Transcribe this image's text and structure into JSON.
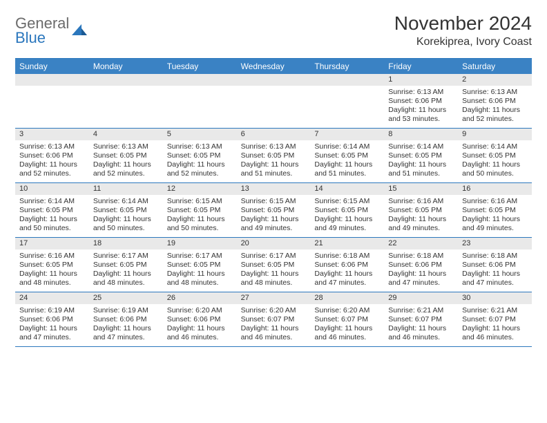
{
  "logo": {
    "line1": "General",
    "line2": "Blue"
  },
  "title": "November 2024",
  "subtitle": "Korekiprea, Ivory Coast",
  "colors": {
    "header_bg": "#3a82c4",
    "header_text": "#ffffff",
    "border": "#2b77bd",
    "daynum_bg": "#e9e9e9",
    "body_text": "#333333",
    "logo_gray": "#6b6b6b",
    "logo_blue": "#2b77bd"
  },
  "day_names": [
    "Sunday",
    "Monday",
    "Tuesday",
    "Wednesday",
    "Thursday",
    "Friday",
    "Saturday"
  ],
  "weeks": [
    [
      {
        "n": "",
        "sunrise": "",
        "sunset": "",
        "daylight": ""
      },
      {
        "n": "",
        "sunrise": "",
        "sunset": "",
        "daylight": ""
      },
      {
        "n": "",
        "sunrise": "",
        "sunset": "",
        "daylight": ""
      },
      {
        "n": "",
        "sunrise": "",
        "sunset": "",
        "daylight": ""
      },
      {
        "n": "",
        "sunrise": "",
        "sunset": "",
        "daylight": ""
      },
      {
        "n": "1",
        "sunrise": "Sunrise: 6:13 AM",
        "sunset": "Sunset: 6:06 PM",
        "daylight": "Daylight: 11 hours and 53 minutes."
      },
      {
        "n": "2",
        "sunrise": "Sunrise: 6:13 AM",
        "sunset": "Sunset: 6:06 PM",
        "daylight": "Daylight: 11 hours and 52 minutes."
      }
    ],
    [
      {
        "n": "3",
        "sunrise": "Sunrise: 6:13 AM",
        "sunset": "Sunset: 6:06 PM",
        "daylight": "Daylight: 11 hours and 52 minutes."
      },
      {
        "n": "4",
        "sunrise": "Sunrise: 6:13 AM",
        "sunset": "Sunset: 6:05 PM",
        "daylight": "Daylight: 11 hours and 52 minutes."
      },
      {
        "n": "5",
        "sunrise": "Sunrise: 6:13 AM",
        "sunset": "Sunset: 6:05 PM",
        "daylight": "Daylight: 11 hours and 52 minutes."
      },
      {
        "n": "6",
        "sunrise": "Sunrise: 6:13 AM",
        "sunset": "Sunset: 6:05 PM",
        "daylight": "Daylight: 11 hours and 51 minutes."
      },
      {
        "n": "7",
        "sunrise": "Sunrise: 6:14 AM",
        "sunset": "Sunset: 6:05 PM",
        "daylight": "Daylight: 11 hours and 51 minutes."
      },
      {
        "n": "8",
        "sunrise": "Sunrise: 6:14 AM",
        "sunset": "Sunset: 6:05 PM",
        "daylight": "Daylight: 11 hours and 51 minutes."
      },
      {
        "n": "9",
        "sunrise": "Sunrise: 6:14 AM",
        "sunset": "Sunset: 6:05 PM",
        "daylight": "Daylight: 11 hours and 50 minutes."
      }
    ],
    [
      {
        "n": "10",
        "sunrise": "Sunrise: 6:14 AM",
        "sunset": "Sunset: 6:05 PM",
        "daylight": "Daylight: 11 hours and 50 minutes."
      },
      {
        "n": "11",
        "sunrise": "Sunrise: 6:14 AM",
        "sunset": "Sunset: 6:05 PM",
        "daylight": "Daylight: 11 hours and 50 minutes."
      },
      {
        "n": "12",
        "sunrise": "Sunrise: 6:15 AM",
        "sunset": "Sunset: 6:05 PM",
        "daylight": "Daylight: 11 hours and 50 minutes."
      },
      {
        "n": "13",
        "sunrise": "Sunrise: 6:15 AM",
        "sunset": "Sunset: 6:05 PM",
        "daylight": "Daylight: 11 hours and 49 minutes."
      },
      {
        "n": "14",
        "sunrise": "Sunrise: 6:15 AM",
        "sunset": "Sunset: 6:05 PM",
        "daylight": "Daylight: 11 hours and 49 minutes."
      },
      {
        "n": "15",
        "sunrise": "Sunrise: 6:16 AM",
        "sunset": "Sunset: 6:05 PM",
        "daylight": "Daylight: 11 hours and 49 minutes."
      },
      {
        "n": "16",
        "sunrise": "Sunrise: 6:16 AM",
        "sunset": "Sunset: 6:05 PM",
        "daylight": "Daylight: 11 hours and 49 minutes."
      }
    ],
    [
      {
        "n": "17",
        "sunrise": "Sunrise: 6:16 AM",
        "sunset": "Sunset: 6:05 PM",
        "daylight": "Daylight: 11 hours and 48 minutes."
      },
      {
        "n": "18",
        "sunrise": "Sunrise: 6:17 AM",
        "sunset": "Sunset: 6:05 PM",
        "daylight": "Daylight: 11 hours and 48 minutes."
      },
      {
        "n": "19",
        "sunrise": "Sunrise: 6:17 AM",
        "sunset": "Sunset: 6:05 PM",
        "daylight": "Daylight: 11 hours and 48 minutes."
      },
      {
        "n": "20",
        "sunrise": "Sunrise: 6:17 AM",
        "sunset": "Sunset: 6:05 PM",
        "daylight": "Daylight: 11 hours and 48 minutes."
      },
      {
        "n": "21",
        "sunrise": "Sunrise: 6:18 AM",
        "sunset": "Sunset: 6:06 PM",
        "daylight": "Daylight: 11 hours and 47 minutes."
      },
      {
        "n": "22",
        "sunrise": "Sunrise: 6:18 AM",
        "sunset": "Sunset: 6:06 PM",
        "daylight": "Daylight: 11 hours and 47 minutes."
      },
      {
        "n": "23",
        "sunrise": "Sunrise: 6:18 AM",
        "sunset": "Sunset: 6:06 PM",
        "daylight": "Daylight: 11 hours and 47 minutes."
      }
    ],
    [
      {
        "n": "24",
        "sunrise": "Sunrise: 6:19 AM",
        "sunset": "Sunset: 6:06 PM",
        "daylight": "Daylight: 11 hours and 47 minutes."
      },
      {
        "n": "25",
        "sunrise": "Sunrise: 6:19 AM",
        "sunset": "Sunset: 6:06 PM",
        "daylight": "Daylight: 11 hours and 47 minutes."
      },
      {
        "n": "26",
        "sunrise": "Sunrise: 6:20 AM",
        "sunset": "Sunset: 6:06 PM",
        "daylight": "Daylight: 11 hours and 46 minutes."
      },
      {
        "n": "27",
        "sunrise": "Sunrise: 6:20 AM",
        "sunset": "Sunset: 6:07 PM",
        "daylight": "Daylight: 11 hours and 46 minutes."
      },
      {
        "n": "28",
        "sunrise": "Sunrise: 6:20 AM",
        "sunset": "Sunset: 6:07 PM",
        "daylight": "Daylight: 11 hours and 46 minutes."
      },
      {
        "n": "29",
        "sunrise": "Sunrise: 6:21 AM",
        "sunset": "Sunset: 6:07 PM",
        "daylight": "Daylight: 11 hours and 46 minutes."
      },
      {
        "n": "30",
        "sunrise": "Sunrise: 6:21 AM",
        "sunset": "Sunset: 6:07 PM",
        "daylight": "Daylight: 11 hours and 46 minutes."
      }
    ]
  ]
}
